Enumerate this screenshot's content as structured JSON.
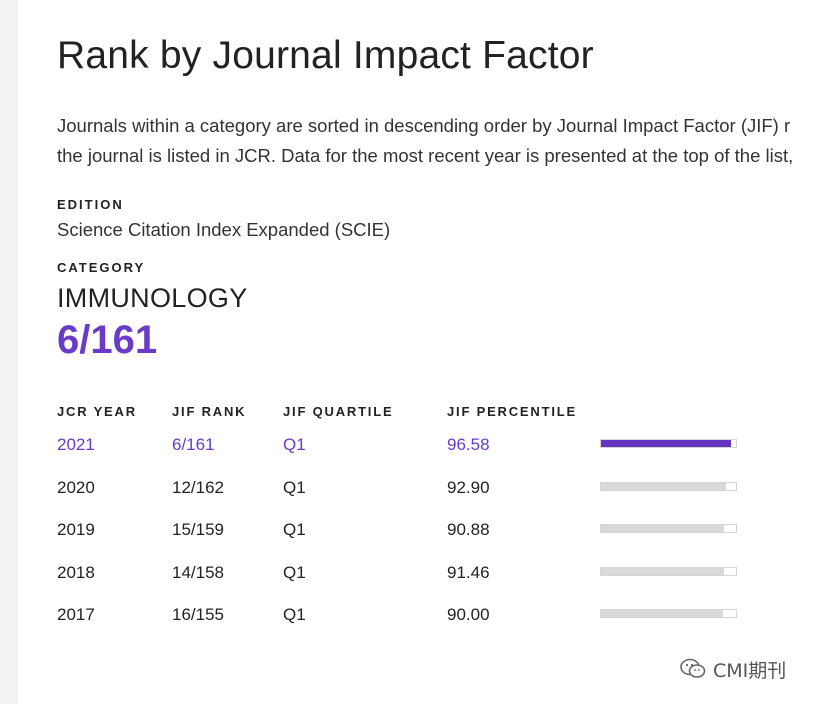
{
  "page": {
    "title": "Rank by Journal Impact Factor",
    "description_lines": [
      "Journals within a category are sorted in descending order by Journal Impact Factor (JIF) r",
      "the journal is listed in JCR. Data for the most recent year is presented at the top of the list,"
    ]
  },
  "edition": {
    "label": "EDITION",
    "value": "Science Citation Index Expanded (SCIE)"
  },
  "category": {
    "label": "CATEGORY",
    "value": "IMMUNOLOGY",
    "rank": "6/161"
  },
  "table": {
    "headers": [
      "JCR YEAR",
      "JIF RANK",
      "JIF QUARTILE",
      "JIF PERCENTILE"
    ],
    "rows": [
      {
        "year": "2021",
        "rank": "6/161",
        "quartile": "Q1",
        "percentile": "96.58",
        "percentile_value": 96.58,
        "highlight": true
      },
      {
        "year": "2020",
        "rank": "12/162",
        "quartile": "Q1",
        "percentile": "92.90",
        "percentile_value": 92.9,
        "highlight": false
      },
      {
        "year": "2019",
        "rank": "15/159",
        "quartile": "Q1",
        "percentile": "90.88",
        "percentile_value": 90.88,
        "highlight": false
      },
      {
        "year": "2018",
        "rank": "14/158",
        "quartile": "Q1",
        "percentile": "91.46",
        "percentile_value": 91.46,
        "highlight": false
      },
      {
        "year": "2017",
        "rank": "16/155",
        "quartile": "Q1",
        "percentile": "90.00",
        "percentile_value": 90.0,
        "highlight": false
      }
    ]
  },
  "watermark": {
    "text": "CMI期刊",
    "icon": "wechat-icon"
  },
  "colors": {
    "accent": "#6a3bc7",
    "bar_accent": "#6534c0",
    "bar_muted": "#d9d9d9"
  }
}
